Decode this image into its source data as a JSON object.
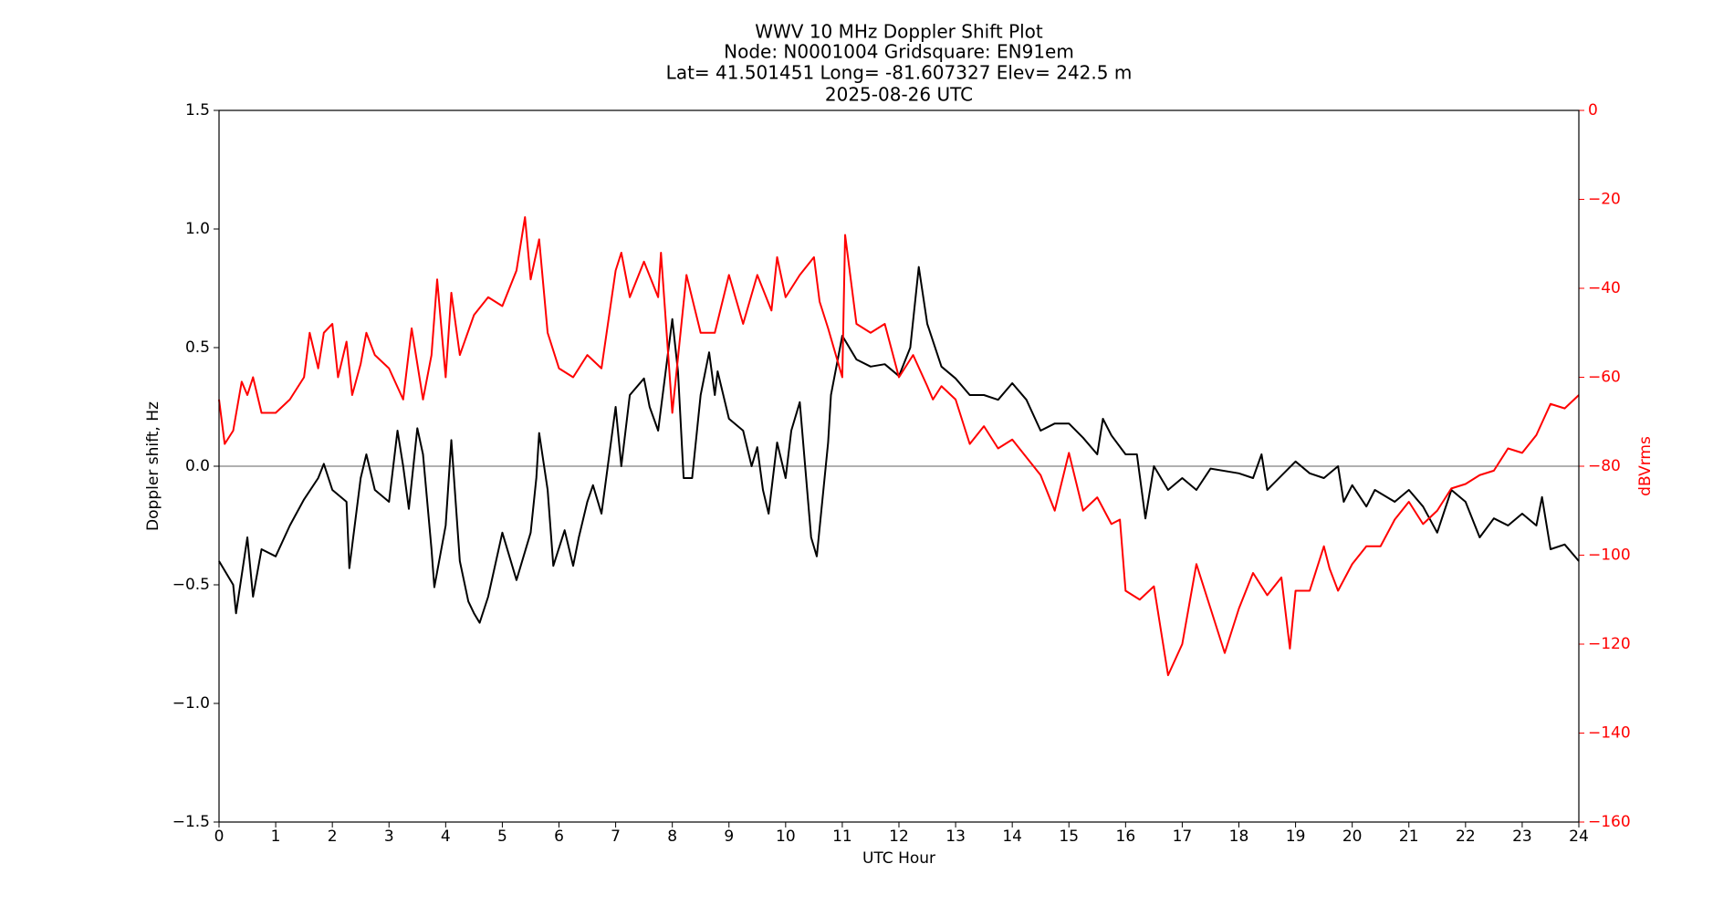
{
  "chart_data": {
    "type": "line",
    "title": [
      "WWV 10 MHz Doppler Shift Plot",
      "Node:  N0001004     Gridsquare:  EN91em",
      "Lat= 41.501451    Long= -81.607327    Elev= 242.5 m",
      "2025-08-26  UTC"
    ],
    "x_label": "UTC Hour",
    "y_label": "Doppler shift, Hz",
    "y2_label": "dBVrms",
    "xlim": [
      0,
      24
    ],
    "xticks": [
      0,
      1,
      2,
      3,
      4,
      5,
      6,
      7,
      8,
      9,
      10,
      11,
      12,
      13,
      14,
      15,
      16,
      17,
      18,
      19,
      20,
      21,
      22,
      23,
      24
    ],
    "ylim": [
      -1.5,
      1.5
    ],
    "yticks": [
      {
        "value": -1.5,
        "label": "−1.5"
      },
      {
        "value": -1,
        "label": "−1.0"
      },
      {
        "value": -0.5,
        "label": "−0.5"
      },
      {
        "value": 0,
        "label": "0.0"
      },
      0.5,
      {
        "value": 1,
        "label": "1.0"
      },
      1.5
    ],
    "y2lim": [
      -160,
      0
    ],
    "y2ticks": [
      {
        "value": -160,
        "label": "−160"
      },
      {
        "value": -140,
        "label": "−140"
      },
      {
        "value": -120,
        "label": "−120"
      },
      {
        "value": -100,
        "label": "−100"
      },
      {
        "value": -80,
        "label": "−80"
      },
      {
        "value": -60,
        "label": "−60"
      },
      {
        "value": -40,
        "label": "−40"
      },
      {
        "value": -20,
        "label": "−20"
      },
      0
    ],
    "y2color": "#ff0000",
    "hline": 0,
    "hline_color": "#808080",
    "series": [
      {
        "color": "#000000",
        "axis": "y",
        "x": [
          0,
          0.25,
          0.3,
          0.5,
          0.6,
          0.75,
          1,
          1.25,
          1.5,
          1.75,
          1.85,
          2,
          2.25,
          2.3,
          2.5,
          2.6,
          2.75,
          3,
          3.15,
          3.25,
          3.35,
          3.5,
          3.6,
          3.75,
          3.8,
          4,
          4.1,
          4.25,
          4.4,
          4.5,
          4.6,
          4.75,
          5,
          5.25,
          5.5,
          5.6,
          5.65,
          5.8,
          5.9,
          6.1,
          6.25,
          6.35,
          6.5,
          6.6,
          6.75,
          7,
          7.1,
          7.25,
          7.5,
          7.6,
          7.75,
          8,
          8.1,
          8.2,
          8.35,
          8.5,
          8.65,
          8.75,
          8.8,
          9,
          9.25,
          9.4,
          9.5,
          9.6,
          9.7,
          9.85,
          10,
          10.1,
          10.25,
          10.45,
          10.55,
          10.75,
          10.8,
          11,
          11.25,
          11.5,
          11.75,
          12,
          12.2,
          12.35,
          12.5,
          12.75,
          13,
          13.25,
          13.5,
          13.75,
          14,
          14.25,
          14.5,
          14.75,
          15,
          15.25,
          15.5,
          15.6,
          15.75,
          16,
          16.2,
          16.35,
          16.5,
          16.75,
          17,
          17.25,
          17.5,
          18,
          18.25,
          18.4,
          18.5,
          19,
          19.25,
          19.5,
          19.75,
          19.85,
          20,
          20.25,
          20.4,
          20.75,
          21,
          21.25,
          21.5,
          21.75,
          22,
          22.25,
          22.5,
          22.75,
          23,
          23.25,
          23.35,
          23.5,
          23.75,
          24
        ],
        "values": [
          -0.4,
          -0.5,
          -0.62,
          -0.3,
          -0.55,
          -0.35,
          -0.38,
          -0.25,
          -0.14,
          -0.05,
          0.01,
          -0.1,
          -0.15,
          -0.43,
          -0.05,
          0.05,
          -0.1,
          -0.15,
          0.15,
          0,
          -0.18,
          0.16,
          0.05,
          -0.35,
          -0.51,
          -0.25,
          0.11,
          -0.4,
          -0.57,
          -0.62,
          -0.66,
          -0.55,
          -0.28,
          -0.48,
          -0.28,
          -0.05,
          0.14,
          -0.1,
          -0.42,
          -0.27,
          -0.42,
          -0.3,
          -0.15,
          -0.08,
          -0.2,
          0.25,
          0,
          0.3,
          0.37,
          0.25,
          0.15,
          0.62,
          0.4,
          -0.05,
          -0.05,
          0.3,
          0.48,
          0.3,
          0.4,
          0.2,
          0.15,
          0,
          0.08,
          -0.1,
          -0.2,
          0.1,
          -0.05,
          0.15,
          0.27,
          -0.3,
          -0.38,
          0.1,
          0.3,
          0.55,
          0.45,
          0.42,
          0.43,
          0.38,
          0.5,
          0.84,
          0.6,
          0.42,
          0.37,
          0.3,
          0.3,
          0.28,
          0.35,
          0.28,
          0.15,
          0.18,
          0.18,
          0.12,
          0.05,
          0.2,
          0.13,
          0.05,
          0.05,
          -0.22,
          0,
          -0.1,
          -0.05,
          -0.1,
          -0.01,
          -0.03,
          -0.05,
          0.05,
          -0.1,
          0.02,
          -0.03,
          -0.05,
          0,
          -0.15,
          -0.08,
          -0.17,
          -0.1,
          -0.15,
          -0.1,
          -0.17,
          -0.28,
          -0.1,
          -0.15,
          -0.3,
          -0.22,
          -0.25,
          -0.2,
          -0.25,
          -0.13,
          -0.35,
          -0.33,
          -0.4
        ]
      },
      {
        "color": "#ff0000",
        "axis": "y2",
        "x": [
          0,
          0.1,
          0.25,
          0.4,
          0.5,
          0.6,
          0.75,
          1,
          1.25,
          1.5,
          1.6,
          1.75,
          1.85,
          2,
          2.1,
          2.25,
          2.35,
          2.5,
          2.6,
          2.75,
          3,
          3.25,
          3.4,
          3.6,
          3.75,
          3.85,
          4,
          4.1,
          4.25,
          4.5,
          4.75,
          5,
          5.25,
          5.4,
          5.5,
          5.65,
          5.8,
          6,
          6.25,
          6.5,
          6.75,
          7,
          7.1,
          7.25,
          7.5,
          7.75,
          7.8,
          8,
          8.25,
          8.5,
          8.75,
          9,
          9.25,
          9.5,
          9.75,
          9.85,
          10,
          10.25,
          10.5,
          10.6,
          10.75,
          11,
          11.05,
          11.25,
          11.5,
          11.75,
          12,
          12.25,
          12.5,
          12.6,
          12.75,
          13,
          13.25,
          13.5,
          13.75,
          14,
          14.25,
          14.5,
          14.75,
          15,
          15.25,
          15.5,
          15.75,
          15.9,
          16,
          16.25,
          16.5,
          16.6,
          16.75,
          17,
          17.25,
          17.5,
          17.75,
          18,
          18.25,
          18.5,
          18.75,
          18.9,
          19,
          19.25,
          19.5,
          19.6,
          19.75,
          20,
          20.25,
          20.5,
          20.75,
          21,
          21.25,
          21.5,
          21.75,
          22,
          22.25,
          22.5,
          22.75,
          23,
          23.25,
          23.5,
          23.75,
          24
        ],
        "values": [
          -65,
          -75,
          -72,
          -61,
          -64,
          -60,
          -68,
          -68,
          -65,
          -60,
          -50,
          -58,
          -50,
          -48,
          -60,
          -52,
          -64,
          -57,
          -50,
          -55,
          -58,
          -65,
          -49,
          -65,
          -55,
          -38,
          -60,
          -41,
          -55,
          -46,
          -42,
          -44,
          -36,
          -24,
          -38,
          -29,
          -50,
          -58,
          -60,
          -55,
          -58,
          -36,
          -32,
          -42,
          -34,
          -42,
          -32,
          -68,
          -37,
          -50,
          -50,
          -37,
          -48,
          -37,
          -45,
          -33,
          -42,
          -37,
          -33,
          -43,
          -49,
          -60,
          -28,
          -48,
          -50,
          -48,
          -60,
          -55,
          -62,
          -65,
          -62,
          -65,
          -75,
          -71,
          -76,
          -74,
          -78,
          -82,
          -90,
          -77,
          -90,
          -87,
          -93,
          -92,
          -108,
          -110,
          -107,
          -115,
          -127,
          -120,
          -102,
          -112,
          -122,
          -112,
          -104,
          -109,
          -105,
          -121,
          -108,
          -108,
          -98,
          -103,
          -108,
          -102,
          -98,
          -98,
          -92,
          -88,
          -93,
          -90,
          -85,
          -84,
          -82,
          -81,
          -76,
          -77,
          -73,
          -66,
          -67,
          -64
        ]
      }
    ]
  }
}
